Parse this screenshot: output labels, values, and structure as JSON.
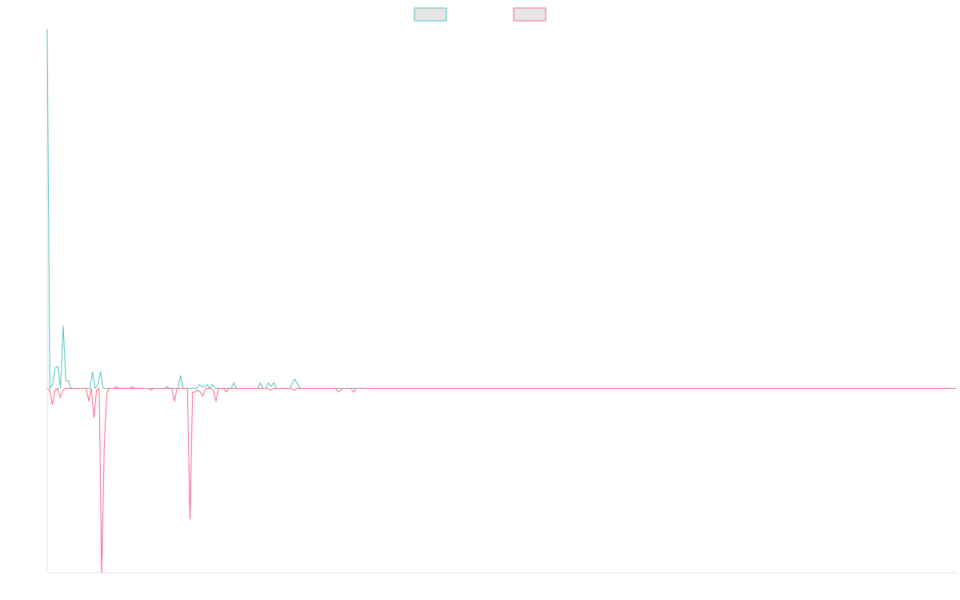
{
  "chart_data": {
    "type": "line",
    "title": "",
    "xlabel": "",
    "ylabel": "",
    "grid": false,
    "legend_position": "top-center",
    "ylim": [
      -1,
      1.95
    ],
    "series": [
      {
        "color": "#4bc0c0",
        "fill": "#e6e6e6",
        "values": [
          1.95,
          0,
          0.02,
          0.11,
          0.12,
          0,
          0.34,
          0.04,
          0.04,
          0,
          0,
          0,
          0,
          0,
          0,
          0,
          0,
          0.09,
          0,
          0.02,
          0.09,
          0,
          0,
          0,
          0,
          0,
          0.01,
          0,
          0,
          0,
          0,
          0,
          0.01,
          0,
          0,
          0,
          0,
          0,
          0,
          0,
          0,
          0,
          0,
          0,
          0,
          0.01,
          0,
          0,
          0,
          0,
          0.07,
          0,
          0,
          0,
          0,
          0,
          0,
          0.02,
          0.01,
          0.01,
          0.02,
          0,
          0.02,
          0,
          0,
          0,
          0,
          0,
          0,
          0,
          0.03,
          0,
          0,
          0,
          0,
          0,
          0,
          0,
          0,
          0,
          0.03,
          0,
          0,
          0.03,
          0.01,
          0.03,
          0,
          0,
          0,
          0,
          0,
          0,
          0.03,
          0.05,
          0.02,
          0,
          0,
          0,
          0,
          0,
          0,
          0,
          0,
          0,
          0,
          0,
          0,
          0,
          0,
          0,
          0,
          0,
          0,
          0,
          0,
          0,
          0,
          0,
          0,
          0,
          0,
          0,
          0,
          0,
          0,
          0,
          0,
          0,
          0,
          0,
          0,
          0,
          0,
          0,
          0,
          0,
          0,
          0,
          0,
          0,
          0,
          0,
          0,
          0,
          0,
          0,
          0,
          0,
          0,
          0,
          0,
          0,
          0,
          0,
          0,
          0,
          0,
          0,
          0,
          0,
          0,
          0,
          0,
          0,
          0,
          0,
          0,
          0,
          0,
          0,
          0,
          0,
          0,
          0,
          0,
          0,
          0,
          0,
          0,
          0,
          0,
          0,
          0,
          0,
          0,
          0,
          0,
          0,
          0,
          0,
          0,
          0,
          0,
          0,
          0,
          0,
          0,
          0,
          0,
          0,
          0,
          0,
          0,
          0,
          0,
          0,
          0,
          0,
          0,
          0,
          0,
          0,
          0,
          0,
          0,
          0,
          0,
          0,
          0,
          0,
          0,
          0,
          0,
          0,
          0,
          0,
          0,
          0,
          0,
          0,
          0,
          0,
          0,
          0,
          0,
          0,
          0,
          0,
          0,
          0,
          0,
          0,
          0,
          0,
          0,
          0,
          0,
          0,
          0,
          0,
          0,
          0,
          0,
          0,
          0,
          0,
          0,
          0,
          0,
          0,
          0,
          0,
          0,
          0,
          0,
          0,
          0,
          0,
          0,
          0,
          0,
          0,
          0,
          0,
          0,
          0,
          0,
          0,
          0,
          0,
          0,
          0,
          0,
          0,
          0,
          0,
          0,
          0,
          0,
          0,
          0,
          0,
          0,
          0,
          0,
          0,
          0,
          0,
          0,
          0,
          0,
          0,
          0,
          0,
          0,
          0,
          0,
          0,
          0,
          0,
          0,
          0,
          0,
          0,
          0,
          0,
          0,
          0,
          0,
          0,
          0,
          0,
          0,
          0,
          0,
          0,
          0,
          0,
          0,
          0,
          0,
          0,
          0,
          0,
          0,
          0,
          0,
          0,
          0,
          0,
          0,
          0
        ]
      },
      {
        "color": "#ff6384",
        "fill": "#e6e6e6",
        "values": [
          0,
          -0.01,
          -0.09,
          -0.01,
          0,
          -0.05,
          -0.01,
          0,
          0,
          0,
          0,
          0,
          0,
          0,
          0,
          0,
          -0.07,
          0,
          -0.16,
          -0.01,
          0,
          -1,
          -0.3,
          -0.02,
          0,
          0,
          0,
          0,
          0,
          0,
          0,
          0,
          0,
          0,
          0,
          0,
          0,
          0,
          0,
          0,
          -0.01,
          0,
          0,
          0,
          0,
          0,
          0,
          0,
          0,
          -0.07,
          0,
          0,
          0,
          0,
          0,
          -0.71,
          -0.02,
          -0.02,
          -0.01,
          -0.02,
          -0.04,
          0,
          0,
          0,
          -0.01,
          -0.07,
          0,
          0,
          0,
          -0.02,
          0,
          0,
          0,
          0,
          0,
          0,
          0,
          0,
          0,
          0,
          0,
          0,
          0,
          0,
          0,
          0,
          -0.01,
          0,
          0,
          0,
          0,
          0,
          0,
          0,
          0,
          -0.01,
          0,
          0,
          0,
          0,
          0,
          0,
          0,
          0,
          0,
          0,
          0,
          0,
          0,
          0,
          0,
          0,
          -0.02,
          -0.01,
          0,
          0,
          0,
          0,
          -0.02,
          0,
          0,
          0,
          0,
          0,
          0,
          0,
          0,
          0,
          0,
          0,
          0,
          0,
          0,
          0,
          0,
          0,
          0,
          0,
          0,
          0,
          0,
          0,
          0,
          0,
          0,
          0,
          0,
          0,
          0,
          0,
          0,
          0,
          0,
          0,
          0,
          0,
          0,
          0,
          0,
          0,
          0,
          0,
          0,
          0,
          0,
          0,
          0,
          0,
          0,
          0,
          0,
          0,
          0,
          0,
          0,
          0,
          0,
          0,
          0,
          0,
          0,
          0,
          0,
          0,
          0,
          0,
          0,
          0,
          0,
          0,
          0,
          0,
          0,
          0,
          0,
          0,
          0,
          0,
          0,
          0,
          0,
          0,
          0,
          0,
          0,
          0,
          0,
          0,
          0,
          0,
          0,
          0,
          0,
          0,
          0,
          0,
          0,
          0,
          0,
          0,
          0,
          0,
          0,
          0,
          0,
          0,
          0,
          0,
          0,
          0,
          0,
          0,
          0,
          0,
          0,
          0,
          0,
          0,
          0,
          0,
          0,
          0,
          0,
          0,
          0,
          0,
          0,
          0,
          0,
          0,
          0,
          0,
          0,
          0,
          0,
          0,
          0,
          0,
          0,
          0,
          0,
          0,
          0,
          0,
          0,
          0,
          0,
          0,
          0,
          0,
          0,
          0,
          0,
          0,
          0,
          0,
          0,
          0,
          0,
          0,
          0,
          0,
          0,
          0,
          0,
          0,
          0,
          0,
          0,
          0,
          0,
          0,
          0,
          0,
          0,
          0,
          0,
          0,
          0,
          0,
          0,
          0,
          0,
          0,
          0,
          0,
          0,
          0,
          0,
          0,
          0,
          0,
          0,
          0,
          0,
          0,
          0,
          0,
          0,
          0,
          0,
          0,
          0,
          0,
          0,
          0,
          0,
          0,
          0,
          0,
          0,
          0,
          0,
          0,
          0,
          0,
          0,
          0,
          0,
          0,
          0,
          0,
          0,
          0,
          0,
          0,
          0,
          0,
          0,
          0,
          0
        ]
      }
    ]
  }
}
